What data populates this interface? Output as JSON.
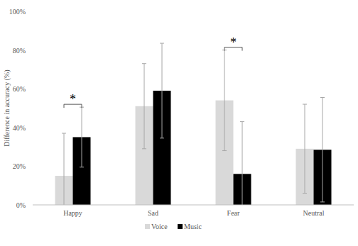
{
  "chart_data": {
    "type": "bar",
    "y_label": "Difference in accuracy (%)",
    "categories": [
      "Happy",
      "Sad",
      "Fear",
      "Neutral"
    ],
    "series": [
      {
        "name": "Voice",
        "color": "#d9d9d9",
        "values": [
          15,
          51,
          54,
          29
        ],
        "errors": [
          22,
          22,
          26,
          23
        ]
      },
      {
        "name": "Music",
        "color": "#000000",
        "values": [
          35,
          59,
          16,
          28.5
        ],
        "errors": [
          15.5,
          24.5,
          27,
          27
        ]
      }
    ],
    "ylim": [
      0,
      100
    ],
    "yticks": [
      {
        "value": 0,
        "label": "0%"
      },
      {
        "value": 20,
        "label": "20%"
      },
      {
        "value": 40,
        "label": "40%"
      },
      {
        "value": 60,
        "label": "60%"
      },
      {
        "value": 80,
        "label": "80%"
      },
      {
        "value": 100,
        "label": "100%"
      }
    ],
    "grid": false,
    "legend": "bottom",
    "significance": [
      {
        "category": "Happy",
        "label": "*"
      },
      {
        "category": "Fear",
        "label": "*"
      }
    ]
  }
}
